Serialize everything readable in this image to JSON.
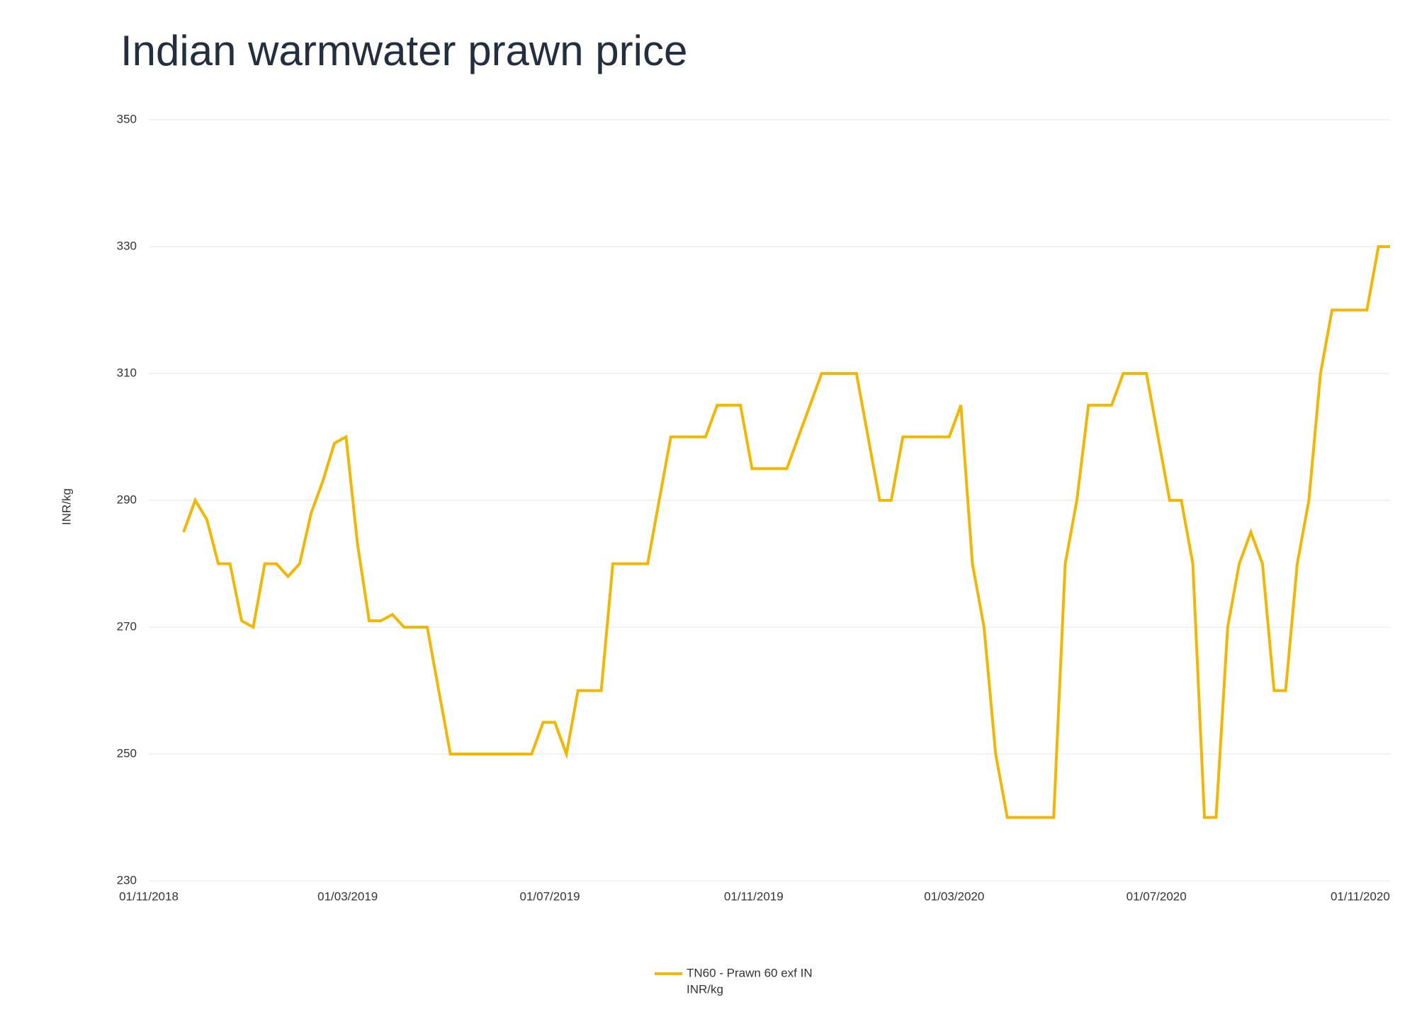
{
  "chart_data": {
    "type": "line",
    "title": "Indian warmwater prawn price",
    "ylabel": "INR/kg",
    "x": [
      "2018-11-22",
      "2018-11-29",
      "2018-12-06",
      "2018-12-13",
      "2018-12-20",
      "2018-12-27",
      "2019-01-03",
      "2019-01-10",
      "2019-01-17",
      "2019-01-24",
      "2019-01-31",
      "2019-02-07",
      "2019-02-14",
      "2019-02-21",
      "2019-02-28",
      "2019-03-07",
      "2019-03-14",
      "2019-03-21",
      "2019-03-28",
      "2019-04-04",
      "2019-04-11",
      "2019-04-18",
      "2019-04-25",
      "2019-05-02",
      "2019-05-09",
      "2019-05-16",
      "2019-05-23",
      "2019-05-30",
      "2019-06-06",
      "2019-06-13",
      "2019-06-20",
      "2019-06-27",
      "2019-07-04",
      "2019-07-11",
      "2019-07-18",
      "2019-07-25",
      "2019-08-01",
      "2019-08-08",
      "2019-08-15",
      "2019-08-22",
      "2019-08-29",
      "2019-09-05",
      "2019-09-12",
      "2019-09-19",
      "2019-09-26",
      "2019-10-03",
      "2019-10-10",
      "2019-10-17",
      "2019-10-24",
      "2019-10-31",
      "2019-11-07",
      "2019-11-14",
      "2019-11-21",
      "2019-11-28",
      "2019-12-05",
      "2019-12-12",
      "2019-12-19",
      "2019-12-26",
      "2020-01-02",
      "2020-01-09",
      "2020-01-16",
      "2020-01-23",
      "2020-01-30",
      "2020-02-06",
      "2020-02-13",
      "2020-02-20",
      "2020-02-27",
      "2020-03-05",
      "2020-03-12",
      "2020-03-19",
      "2020-03-26",
      "2020-04-02",
      "2020-04-09",
      "2020-04-16",
      "2020-04-23",
      "2020-04-30",
      "2020-05-07",
      "2020-05-14",
      "2020-05-21",
      "2020-05-28",
      "2020-06-04",
      "2020-06-11",
      "2020-06-18",
      "2020-06-25",
      "2020-07-02",
      "2020-07-09",
      "2020-07-16",
      "2020-07-23",
      "2020-07-30",
      "2020-08-06",
      "2020-08-13",
      "2020-08-20",
      "2020-08-27",
      "2020-09-03",
      "2020-09-10",
      "2020-09-17",
      "2020-09-24",
      "2020-10-01",
      "2020-10-08",
      "2020-10-15",
      "2020-10-22",
      "2020-10-29",
      "2020-11-05",
      "2020-11-12",
      "2020-11-19"
    ],
    "series": [
      {
        "name": "TN60 - Prawn 60 exf IN",
        "unit": "INR/kg",
        "color": "#f2b705",
        "values": [
          285,
          290,
          287,
          280,
          280,
          271,
          270,
          280,
          280,
          278,
          280,
          288,
          293,
          299,
          300,
          283,
          271,
          271,
          272,
          270,
          270,
          270,
          260,
          250,
          250,
          250,
          250,
          250,
          250,
          250,
          250,
          255,
          255,
          250,
          260,
          260,
          260,
          280,
          280,
          280,
          280,
          290,
          300,
          300,
          300,
          300,
          305,
          305,
          305,
          295,
          295,
          295,
          295,
          300,
          305,
          310,
          310,
          310,
          310,
          300,
          290,
          290,
          300,
          300,
          300,
          300,
          300,
          305,
          280,
          270,
          250,
          240,
          240,
          240,
          240,
          240,
          280,
          290,
          305,
          305,
          305,
          310,
          310,
          310,
          300,
          290,
          290,
          280,
          240,
          240,
          270,
          280,
          285,
          280,
          260,
          260,
          280,
          290,
          310,
          320,
          320,
          320,
          320,
          330,
          330
        ]
      }
    ],
    "xlim": [
      "2018-11-01",
      "2020-11-19"
    ],
    "xticks": [
      {
        "value": "2018-11-01",
        "label": "01/11/2018"
      },
      {
        "value": "2019-03-01",
        "label": "01/03/2019"
      },
      {
        "value": "2019-07-01",
        "label": "01/07/2019"
      },
      {
        "value": "2019-11-01",
        "label": "01/11/2019"
      },
      {
        "value": "2020-03-01",
        "label": "01/03/2020"
      },
      {
        "value": "2020-07-01",
        "label": "01/07/2020"
      },
      {
        "value": "2020-11-01",
        "label": "01/11/2020"
      }
    ],
    "ylim": [
      230,
      350
    ],
    "yticks": [
      230,
      250,
      270,
      290,
      310,
      330,
      350
    ],
    "grid": true,
    "legend": "bottom"
  }
}
